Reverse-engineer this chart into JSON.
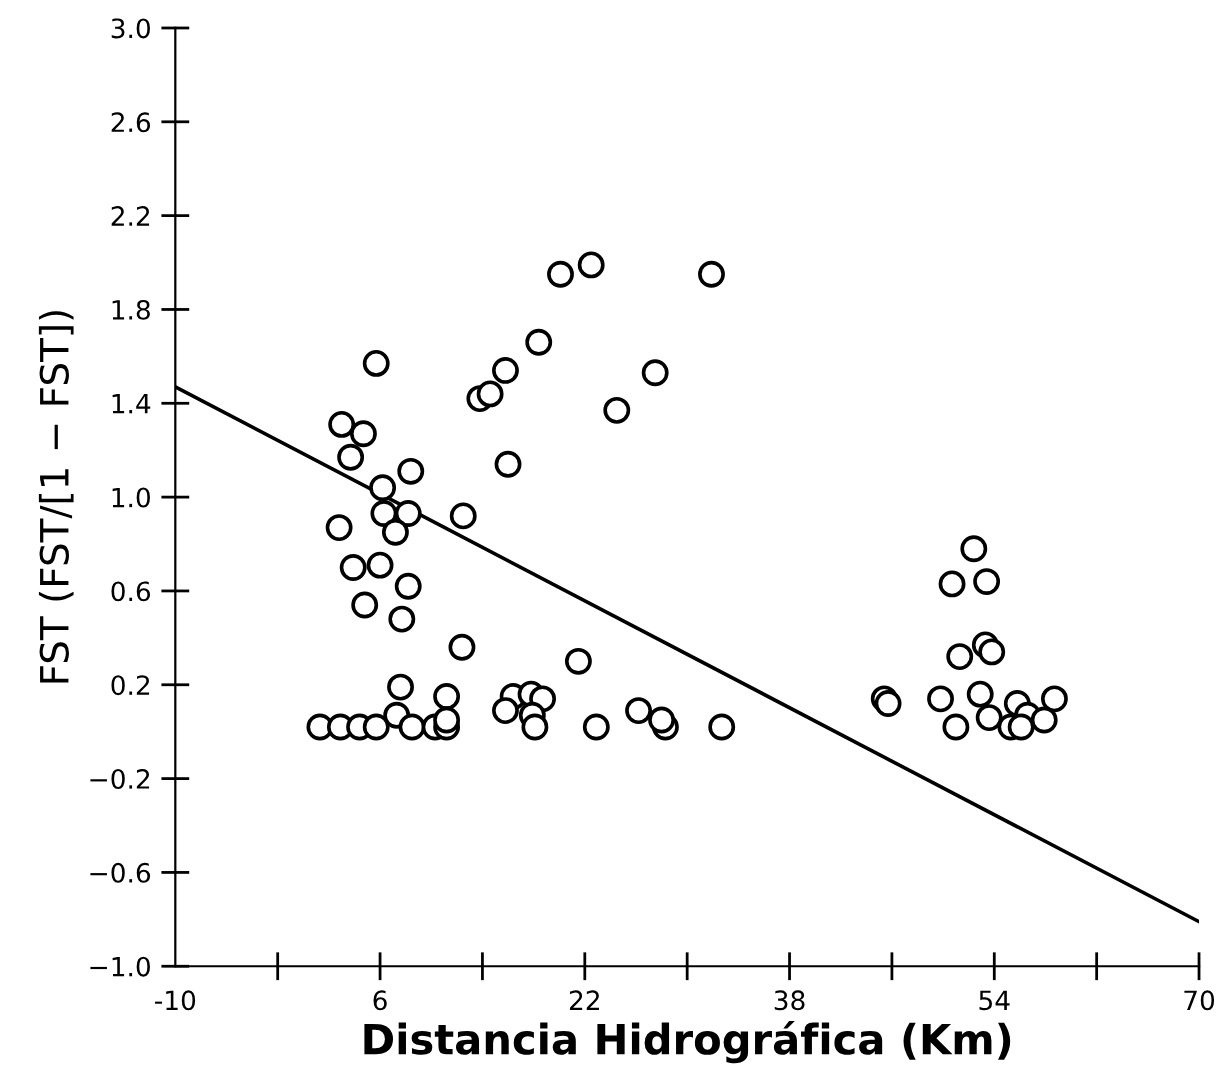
{
  "chart_data": {
    "type": "scatter",
    "xlabel": "Distancia Hidrográfica (Km)",
    "ylabel": "FST (FST/[1 − FST])",
    "xlim": [
      -10,
      70
    ],
    "ylim": [
      -1.0,
      3.0
    ],
    "xticks": [
      -10,
      {
        "value": -2,
        "label": null
      },
      6,
      {
        "value": 14,
        "label": null
      },
      22,
      {
        "value": 30,
        "label": null
      },
      38,
      {
        "value": 46,
        "label": null
      },
      54,
      {
        "value": 62,
        "label": null
      },
      70
    ],
    "yticks": [
      {
        "value": -1.0,
        "label": "−1.0"
      },
      {
        "value": -0.6,
        "label": "−0.6"
      },
      {
        "value": -0.2,
        "label": "−0.2"
      },
      0.2,
      0.6,
      {
        "value": 1.0,
        "label": "1.0"
      },
      1.4,
      1.8,
      2.2,
      2.6,
      {
        "value": 3.0,
        "label": "3.0"
      }
    ],
    "grid": false,
    "series": [
      {
        "color": "#000000",
        "marker": "circle",
        "x": [
          22.5,
          20.1,
          31.9,
          18.4,
          5.7,
          15.8,
          27.5,
          13.8,
          14.6,
          24.5,
          3.0,
          4.7,
          3.7,
          16.0,
          8.4,
          6.2,
          6.3,
          8.2,
          12.5,
          2.8,
          7.2,
          3.9,
          6.0,
          8.2,
          4.8,
          7.7,
          12.4,
          21.5,
          7.6,
          11.2,
          16.4,
          17.8,
          18.7,
          7.3,
          15.8,
          17.9,
          26.2,
          1.3,
          2.9,
          4.4,
          5.7,
          8.5,
          10.3,
          11.2,
          11.2,
          18.1,
          22.9,
          28.3,
          28.0,
          32.7,
          52.4,
          50.7,
          53.4,
          51.3,
          53.3,
          53.8,
          45.4,
          45.7,
          49.8,
          52.9,
          58.7,
          55.8,
          53.6,
          51.0,
          56.6,
          57.9,
          55.3,
          56.1
        ],
        "values": [
          1.99,
          1.95,
          1.95,
          1.66,
          1.57,
          1.54,
          1.53,
          1.42,
          1.44,
          1.37,
          1.31,
          1.27,
          1.17,
          1.14,
          1.11,
          1.04,
          0.93,
          0.93,
          0.92,
          0.87,
          0.85,
          0.7,
          0.71,
          0.62,
          0.54,
          0.48,
          0.36,
          0.3,
          0.19,
          0.15,
          0.15,
          0.16,
          0.14,
          0.07,
          0.09,
          0.07,
          0.09,
          0.02,
          0.02,
          0.02,
          0.02,
          0.02,
          0.02,
          0.02,
          0.05,
          0.02,
          0.02,
          0.02,
          0.05,
          0.02,
          0.78,
          0.63,
          0.64,
          0.32,
          0.37,
          0.34,
          0.14,
          0.12,
          0.14,
          0.16,
          0.14,
          0.12,
          0.06,
          0.02,
          0.07,
          0.05,
          0.02,
          0.02
        ]
      },
      {
        "type": "line",
        "color": "#000000",
        "marker": "none",
        "line_style": "solid",
        "x": [
          -10,
          70
        ],
        "values": [
          1.47,
          -0.81
        ]
      }
    ]
  }
}
